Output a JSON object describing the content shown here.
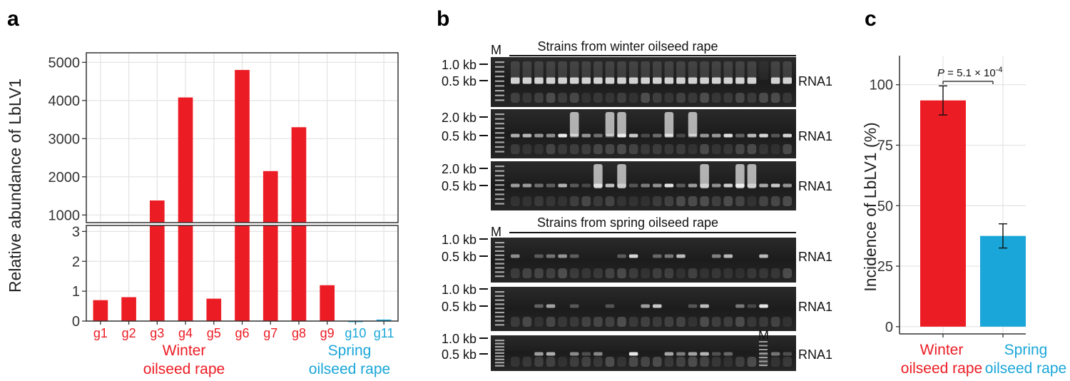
{
  "colors": {
    "winter": "#ec1c24",
    "spring": "#1aa6d8",
    "grid": "#e3e3e3"
  },
  "panel_labels": {
    "a": "a",
    "b": "b",
    "c": "c"
  },
  "chart_data": [
    {
      "type": "bar",
      "panel": "a",
      "ylabel": "Relative abundance of LbLV1",
      "categories": [
        "g1",
        "g2",
        "g3",
        "g4",
        "g5",
        "g6",
        "g7",
        "g8",
        "g9",
        "g10",
        "g11"
      ],
      "values": [
        0.7,
        0.8,
        1380,
        4080,
        0.75,
        4800,
        2150,
        3300,
        1.2,
        0,
        0.05
      ],
      "groups": [
        "winter",
        "winter",
        "winter",
        "winter",
        "winter",
        "winter",
        "winter",
        "winter",
        "winter",
        "spring",
        "spring"
      ],
      "group_labels": {
        "winter": [
          "Winter",
          "oilseed rape"
        ],
        "spring": [
          "Spring",
          "oilseed rape"
        ]
      },
      "axis_break": {
        "lower_ylim": [
          0,
          3.2
        ],
        "lower_ticks": [
          0,
          1,
          2,
          3
        ],
        "upper_ylim": [
          800,
          5250
        ],
        "upper_ticks": [
          1000,
          2000,
          3000,
          4000,
          5000
        ]
      },
      "grid": true
    },
    {
      "type": "bar",
      "panel": "c",
      "ylabel": "Incidence of LbLV1 (%)",
      "categories": [
        [
          "Winter",
          "oilseed rape"
        ],
        [
          "Spring",
          "oilseed rape"
        ]
      ],
      "values": [
        93.5,
        37.5
      ],
      "error": [
        6,
        5
      ],
      "ylim": [
        -3,
        112
      ],
      "yticks": [
        0,
        25,
        50,
        75,
        100
      ],
      "annotation": {
        "prefix": "P",
        "text": " = 5.1 × 10",
        "exponent": "-4"
      },
      "grid": true
    }
  ],
  "gel": {
    "marker": "M",
    "blocks": [
      {
        "title": "Strains from winter oilseed rape",
        "strips": [
          {
            "ladder": [
              "1.0 kb",
              "0.5 kb"
            ],
            "band": "RNA1"
          },
          {
            "ladder": [
              "2.0 kb",
              "0.5 kb"
            ],
            "band": "RNA1"
          },
          {
            "ladder": [
              "2.0 kb",
              "0.5 kb"
            ],
            "band": "RNA1"
          }
        ]
      },
      {
        "title": "Strains from spring oilseed rape",
        "strips": [
          {
            "ladder": [
              "1.0 kb",
              "0.5 kb"
            ],
            "band": "RNA1"
          },
          {
            "ladder": [
              "1.0 kb",
              "0.5 kb"
            ],
            "band": "RNA1"
          },
          {
            "ladder": [
              "1.0 kb",
              "0.5 kb"
            ],
            "band": "RNA1"
          }
        ]
      }
    ]
  }
}
